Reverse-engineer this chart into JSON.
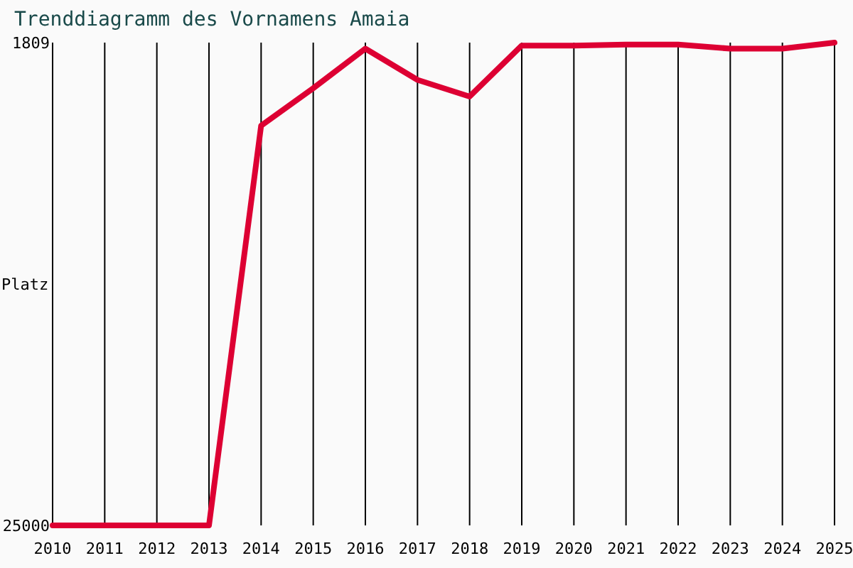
{
  "chart_data": {
    "type": "line",
    "title": "Trenddiagramm des Vornamens Amaia",
    "ylabel": "Platz",
    "x": [
      2010,
      2011,
      2012,
      2013,
      2014,
      2015,
      2016,
      2017,
      2018,
      2019,
      2020,
      2021,
      2022,
      2023,
      2024,
      2025
    ],
    "series": [
      {
        "color": "#dd0033",
        "values": [
          25000,
          25000,
          25000,
          25000,
          5800,
          4000,
          2100,
          3600,
          4400,
          1950,
          1950,
          1900,
          1900,
          2100,
          2100,
          1809
        ]
      }
    ],
    "xlim": [
      2010,
      2025
    ],
    "xticks": [
      2010,
      2011,
      2012,
      2013,
      2014,
      2015,
      2016,
      2017,
      2018,
      2019,
      2020,
      2021,
      2022,
      2023,
      2024,
      2025
    ],
    "ylim": [
      25000,
      1809
    ],
    "yticks": [
      1809,
      25000
    ],
    "grid": "x",
    "marker": "none",
    "line_style": "solid"
  }
}
